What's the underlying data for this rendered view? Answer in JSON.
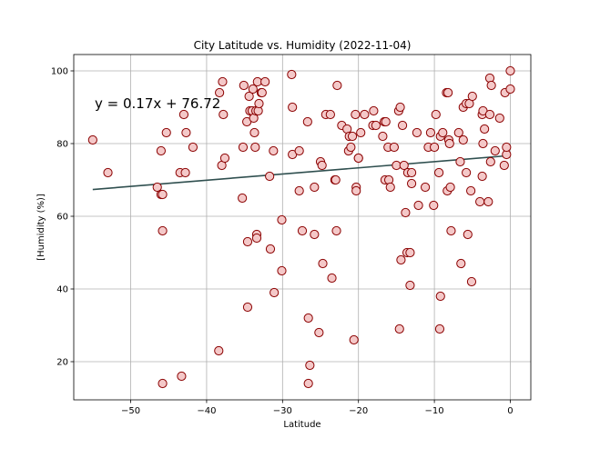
{
  "chart_data": {
    "type": "scatter",
    "title": "City Latitude vs. Humidity (2022-11-04)",
    "xlabel": "Latitude",
    "ylabel": "[Humidity (%)]",
    "xlim": [
      -57.5,
      2.7
    ],
    "ylim": [
      9.5,
      104.5
    ],
    "xticks": [
      -50,
      -40,
      -30,
      -20,
      -10,
      0
    ],
    "yticks": [
      20,
      40,
      60,
      80,
      100
    ],
    "grid": true,
    "annotation": "y = 0.17x + 76.72",
    "regression": {
      "slope": 0.17,
      "intercept": 76.72,
      "x_range": [
        -55,
        0
      ]
    },
    "marker_face_color": "#f4c8c8",
    "marker_edge_color": "#8b0000",
    "line_color": "#2f4f4f",
    "points": [
      [
        -55,
        81
      ],
      [
        -53,
        72
      ],
      [
        -46.5,
        68
      ],
      [
        -46,
        66
      ],
      [
        -46,
        78
      ],
      [
        -45.8,
        66
      ],
      [
        -45.8,
        56
      ],
      [
        -45.3,
        83
      ],
      [
        -45.8,
        14
      ],
      [
        -43.5,
        72
      ],
      [
        -43.3,
        16
      ],
      [
        -43,
        88
      ],
      [
        -42.8,
        72
      ],
      [
        -42.7,
        83
      ],
      [
        -41.8,
        79
      ],
      [
        -38.3,
        94
      ],
      [
        -38.4,
        23
      ],
      [
        -38,
        74
      ],
      [
        -37.9,
        97
      ],
      [
        -37.8,
        88
      ],
      [
        -37.6,
        76
      ],
      [
        -35.3,
        65
      ],
      [
        -35.2,
        79
      ],
      [
        -35.1,
        96
      ],
      [
        -34.7,
        86
      ],
      [
        -34.6,
        53
      ],
      [
        -34.6,
        35
      ],
      [
        -34.4,
        93
      ],
      [
        -34.3,
        89
      ],
      [
        -34,
        89
      ],
      [
        -33.9,
        95
      ],
      [
        -33.8,
        87
      ],
      [
        -33.7,
        83
      ],
      [
        -33.6,
        79
      ],
      [
        -33.5,
        89
      ],
      [
        -33.4,
        55
      ],
      [
        -33.4,
        54
      ],
      [
        -33.3,
        97
      ],
      [
        -33.2,
        89
      ],
      [
        -33.1,
        91
      ],
      [
        -32.8,
        94
      ],
      [
        -32.7,
        94
      ],
      [
        -32.3,
        97
      ],
      [
        -31.7,
        71
      ],
      [
        -31.6,
        51
      ],
      [
        -31.2,
        78
      ],
      [
        -31.1,
        39
      ],
      [
        -30.1,
        59
      ],
      [
        -30.1,
        45
      ],
      [
        -28.8,
        99
      ],
      [
        -28.7,
        90
      ],
      [
        -28.7,
        77
      ],
      [
        -27.8,
        78
      ],
      [
        -27.8,
        67
      ],
      [
        -27.4,
        56
      ],
      [
        -26.7,
        86
      ],
      [
        -26.6,
        32
      ],
      [
        -26.6,
        14
      ],
      [
        -26.4,
        19
      ],
      [
        -25.8,
        68
      ],
      [
        -25.8,
        55
      ],
      [
        -25.2,
        28
      ],
      [
        -25,
        75
      ],
      [
        -24.8,
        74
      ],
      [
        -24.7,
        47
      ],
      [
        -24.3,
        88
      ],
      [
        -23.7,
        88
      ],
      [
        -23.5,
        43
      ],
      [
        -23.1,
        70
      ],
      [
        -23,
        70
      ],
      [
        -22.9,
        56
      ],
      [
        -22.8,
        96
      ],
      [
        -22.2,
        85
      ],
      [
        -21.5,
        84
      ],
      [
        -21.3,
        78
      ],
      [
        -21.2,
        82
      ],
      [
        -21,
        79
      ],
      [
        -20.8,
        82
      ],
      [
        -20.6,
        26
      ],
      [
        -20.4,
        88
      ],
      [
        -20.3,
        68
      ],
      [
        -20.3,
        67
      ],
      [
        -20,
        76
      ],
      [
        -20,
        76
      ],
      [
        -19.7,
        83
      ],
      [
        -19.2,
        88
      ],
      [
        -18.1,
        85
      ],
      [
        -18,
        89
      ],
      [
        -17.7,
        85
      ],
      [
        -16.8,
        82
      ],
      [
        -16.6,
        86
      ],
      [
        -16.5,
        70
      ],
      [
        -16.4,
        86
      ],
      [
        -16.1,
        79
      ],
      [
        -16,
        70
      ],
      [
        -15.8,
        68
      ],
      [
        -15.3,
        79
      ],
      [
        -15,
        74
      ],
      [
        -14.7,
        89
      ],
      [
        -14.6,
        29
      ],
      [
        -14.5,
        90
      ],
      [
        -14.4,
        48
      ],
      [
        -14.2,
        85
      ],
      [
        -14,
        74
      ],
      [
        -13.8,
        61
      ],
      [
        -13.6,
        50
      ],
      [
        -13.5,
        72
      ],
      [
        -13.2,
        50
      ],
      [
        -13.2,
        41
      ],
      [
        -13,
        69
      ],
      [
        -13,
        72
      ],
      [
        -12.3,
        83
      ],
      [
        -12.1,
        63
      ],
      [
        -11.2,
        68
      ],
      [
        -10.8,
        79
      ],
      [
        -10.5,
        83
      ],
      [
        -10.1,
        63
      ],
      [
        -10,
        79
      ],
      [
        -9.8,
        88
      ],
      [
        -9.4,
        72
      ],
      [
        -9.3,
        29
      ],
      [
        -9.2,
        82
      ],
      [
        -9.2,
        38
      ],
      [
        -8.9,
        83
      ],
      [
        -8.4,
        94
      ],
      [
        -8.3,
        67
      ],
      [
        -8.2,
        94
      ],
      [
        -8.1,
        81
      ],
      [
        -8,
        80
      ],
      [
        -7.9,
        68
      ],
      [
        -7.8,
        56
      ],
      [
        -6.8,
        83
      ],
      [
        -6.6,
        75
      ],
      [
        -6.5,
        47
      ],
      [
        -6.2,
        90
      ],
      [
        -6.2,
        81
      ],
      [
        -5.8,
        72
      ],
      [
        -5.8,
        91
      ],
      [
        -5.6,
        55
      ],
      [
        -5.4,
        91
      ],
      [
        -5.2,
        67
      ],
      [
        -5.1,
        42
      ],
      [
        -5,
        93
      ],
      [
        -4,
        64
      ],
      [
        -3.7,
        71
      ],
      [
        -3.7,
        88
      ],
      [
        -3.6,
        80
      ],
      [
        -3.6,
        89
      ],
      [
        -3.4,
        84
      ],
      [
        -2.9,
        64
      ],
      [
        -2.7,
        98
      ],
      [
        -2.7,
        88
      ],
      [
        -2.6,
        75
      ],
      [
        -2.5,
        96
      ],
      [
        -2,
        78
      ],
      [
        -1.4,
        87
      ],
      [
        -0.8,
        74
      ],
      [
        -0.7,
        94
      ],
      [
        -0.5,
        77
      ],
      [
        -0.5,
        79
      ],
      [
        0,
        95
      ],
      [
        0,
        100
      ]
    ]
  }
}
